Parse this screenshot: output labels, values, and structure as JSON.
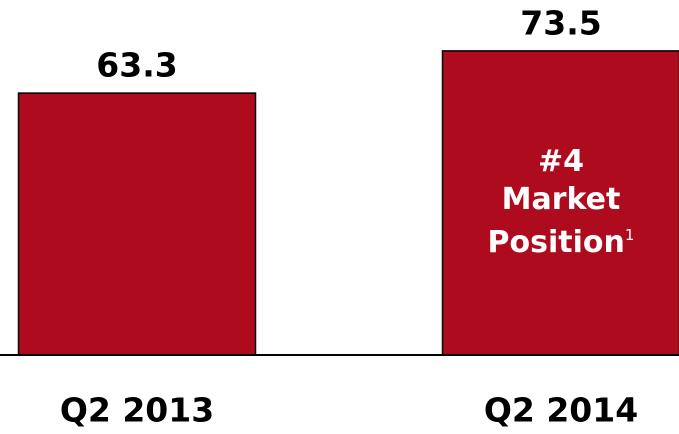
{
  "chart_data": {
    "type": "bar",
    "categories": [
      "Q2 2013",
      "Q2 2014"
    ],
    "values": [
      63.3,
      73.5
    ],
    "color": "#ae0c1e",
    "ylim": [
      0,
      80
    ],
    "annotation": {
      "lines": [
        "#4",
        "Market",
        "Position"
      ],
      "footnote_mark": "1"
    }
  }
}
